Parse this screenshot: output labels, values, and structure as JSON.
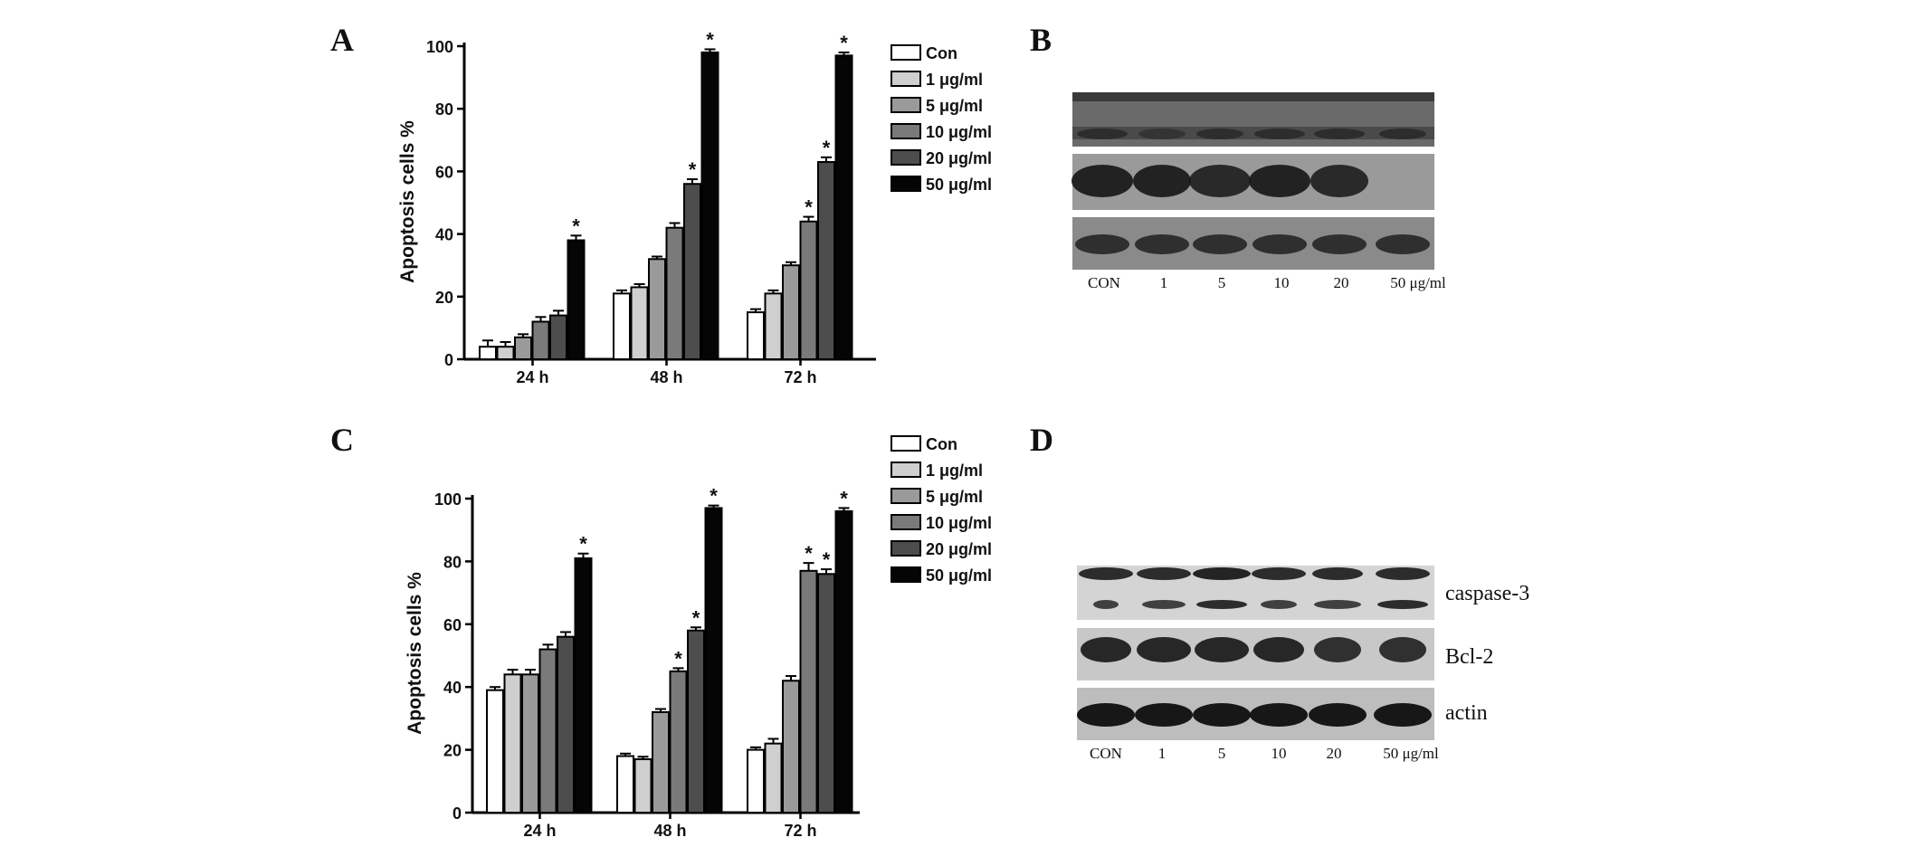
{
  "panels": {
    "a": "A",
    "b": "B",
    "c": "C",
    "d": "D"
  },
  "chart_data": [
    {
      "type": "bar",
      "panel": "A",
      "ylabel": "Apoptosis cells %",
      "ylim": [
        0,
        100
      ],
      "yticks": [
        "0",
        "20",
        "40",
        "60",
        "80",
        "100"
      ],
      "categories": [
        "24 h",
        "48 h",
        "72 h"
      ],
      "legend_position": "top-right",
      "series": [
        {
          "name": "Con",
          "values": [
            4,
            21,
            15
          ],
          "errors": [
            2,
            1,
            1
          ],
          "stars": [
            false,
            false,
            false
          ],
          "color": "#ffffff"
        },
        {
          "name": "1 μg/ml",
          "values": [
            4,
            23,
            21
          ],
          "errors": [
            1.5,
            1,
            1
          ],
          "stars": [
            false,
            false,
            false
          ],
          "color": "#cfcfcf"
        },
        {
          "name": "5 μg/ml",
          "values": [
            7,
            32,
            30
          ],
          "errors": [
            1,
            0.8,
            1
          ],
          "stars": [
            false,
            false,
            false
          ],
          "color": "#9a9a9a"
        },
        {
          "name": "10 μg/ml",
          "values": [
            12,
            42,
            44
          ],
          "errors": [
            1.5,
            1.5,
            1.5
          ],
          "stars": [
            false,
            false,
            true
          ],
          "color": "#7a7a7a"
        },
        {
          "name": "20 μg/ml",
          "values": [
            14,
            56,
            63
          ],
          "errors": [
            1.5,
            1.5,
            1.5
          ],
          "stars": [
            false,
            true,
            true
          ],
          "color": "#4d4d4d"
        },
        {
          "name": "50 μg/ml",
          "values": [
            38,
            98,
            97
          ],
          "errors": [
            1.5,
            1,
            1
          ],
          "stars": [
            true,
            true,
            true
          ],
          "color": "#050505"
        }
      ]
    },
    {
      "type": "bar",
      "panel": "C",
      "ylabel": "Apoptosis cells %",
      "ylim": [
        0,
        100
      ],
      "yticks": [
        "0",
        "20",
        "40",
        "60",
        "80",
        "100"
      ],
      "categories": [
        "24 h",
        "48 h",
        "72 h"
      ],
      "legend_position": "top-right",
      "series": [
        {
          "name": "Con",
          "values": [
            39,
            18,
            20
          ],
          "errors": [
            1,
            0.8,
            0.8
          ],
          "stars": [
            false,
            false,
            false
          ],
          "color": "#ffffff"
        },
        {
          "name": "1 μg/ml",
          "values": [
            44,
            17,
            22
          ],
          "errors": [
            1.5,
            0.8,
            1.5
          ],
          "stars": [
            false,
            false,
            false
          ],
          "color": "#cfcfcf"
        },
        {
          "name": "5 μg/ml",
          "values": [
            44,
            32,
            42
          ],
          "errors": [
            1.5,
            1,
            1.5
          ],
          "stars": [
            false,
            false,
            false
          ],
          "color": "#9a9a9a"
        },
        {
          "name": "10 μg/ml",
          "values": [
            52,
            45,
            77
          ],
          "errors": [
            1.5,
            1,
            2.5
          ],
          "stars": [
            false,
            true,
            true
          ],
          "color": "#7a7a7a"
        },
        {
          "name": "20 μg/ml",
          "values": [
            56,
            58,
            76
          ],
          "errors": [
            1.5,
            1,
            1.5
          ],
          "stars": [
            false,
            true,
            true
          ],
          "color": "#4d4d4d"
        },
        {
          "name": "50 μg/ml",
          "values": [
            81,
            97,
            96
          ],
          "errors": [
            1.5,
            0.8,
            1
          ],
          "stars": [
            true,
            true,
            true
          ],
          "color": "#050505"
        }
      ]
    }
  ],
  "blots": {
    "b": {
      "lanes": [
        "CON",
        "1",
        "5",
        "10",
        "20",
        "50 μg/ml"
      ],
      "band_labels": []
    },
    "d": {
      "lanes": [
        "CON",
        "1",
        "5",
        "10",
        "20",
        "50 μg/ml"
      ],
      "band_labels": [
        "caspase-3",
        "Bcl-2",
        "actin"
      ]
    }
  },
  "star_symbol": "*"
}
